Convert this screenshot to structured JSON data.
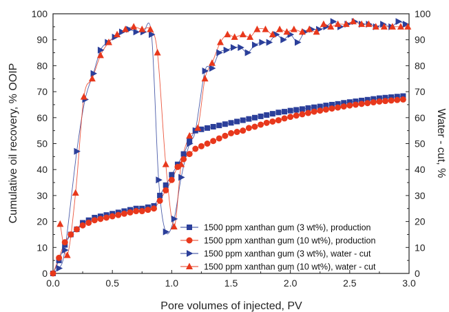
{
  "chart_data": {
    "type": "scatter",
    "xlabel": "Pore volumes of injected, PV",
    "ylabel": "Cumulative oil recovery, % OOIP",
    "y2label": "Water - cut, %",
    "xlim": [
      0,
      3.0
    ],
    "ylim": [
      0,
      100
    ],
    "y2lim": [
      0,
      100
    ],
    "x_ticks": [
      "0.0",
      "0.5",
      "1.0",
      "1.5",
      "2.0",
      "2.5",
      "3.0"
    ],
    "y_ticks": [
      "0",
      "10",
      "20",
      "30",
      "40",
      "50",
      "60",
      "70",
      "80",
      "90",
      "100"
    ],
    "grid": false,
    "legend_position": "lower-right",
    "series": [
      {
        "name": "1500 ppm xanthan gum (3 wt%), production",
        "marker": "square",
        "color": "#2b3f9a",
        "axis": "left",
        "points": [
          [
            0.0,
            0
          ],
          [
            0.05,
            5
          ],
          [
            0.1,
            11
          ],
          [
            0.15,
            15
          ],
          [
            0.2,
            17
          ],
          [
            0.25,
            19.5
          ],
          [
            0.3,
            20.5
          ],
          [
            0.35,
            21.5
          ],
          [
            0.4,
            22
          ],
          [
            0.45,
            22.5
          ],
          [
            0.5,
            23
          ],
          [
            0.55,
            23.5
          ],
          [
            0.6,
            24
          ],
          [
            0.65,
            24.5
          ],
          [
            0.7,
            25
          ],
          [
            0.75,
            25
          ],
          [
            0.8,
            25.5
          ],
          [
            0.85,
            26
          ],
          [
            0.9,
            30
          ],
          [
            0.95,
            34
          ],
          [
            1.0,
            38
          ],
          [
            1.05,
            42
          ],
          [
            1.1,
            46
          ],
          [
            1.15,
            51
          ],
          [
            1.2,
            55
          ],
          [
            1.25,
            55.5
          ],
          [
            1.3,
            56
          ],
          [
            1.35,
            56.5
          ],
          [
            1.4,
            57
          ],
          [
            1.45,
            57.5
          ],
          [
            1.5,
            58
          ],
          [
            1.55,
            58.5
          ],
          [
            1.6,
            59
          ],
          [
            1.65,
            59.5
          ],
          [
            1.7,
            60
          ],
          [
            1.75,
            60.5
          ],
          [
            1.8,
            61
          ],
          [
            1.85,
            61.5
          ],
          [
            1.9,
            62
          ],
          [
            1.95,
            62.3
          ],
          [
            2.0,
            62.7
          ],
          [
            2.05,
            63
          ],
          [
            2.1,
            63.3
          ],
          [
            2.15,
            63.7
          ],
          [
            2.2,
            64
          ],
          [
            2.25,
            64.3
          ],
          [
            2.3,
            64.7
          ],
          [
            2.35,
            65
          ],
          [
            2.4,
            65.3
          ],
          [
            2.45,
            65.7
          ],
          [
            2.5,
            66
          ],
          [
            2.55,
            66.3
          ],
          [
            2.6,
            66.6
          ],
          [
            2.65,
            66.9
          ],
          [
            2.7,
            67.2
          ],
          [
            2.75,
            67.5
          ],
          [
            2.8,
            67.7
          ],
          [
            2.85,
            67.9
          ],
          [
            2.9,
            68.1
          ],
          [
            2.95,
            68.3
          ]
        ]
      },
      {
        "name": "1500 ppm xanthan gum (10 wt%), production",
        "marker": "circle",
        "color": "#e8381c",
        "axis": "left",
        "points": [
          [
            0.0,
            0
          ],
          [
            0.05,
            6
          ],
          [
            0.1,
            12
          ],
          [
            0.15,
            15
          ],
          [
            0.2,
            17
          ],
          [
            0.25,
            18.5
          ],
          [
            0.3,
            19.5
          ],
          [
            0.35,
            20.5
          ],
          [
            0.4,
            21
          ],
          [
            0.45,
            21.5
          ],
          [
            0.5,
            22
          ],
          [
            0.55,
            22.5
          ],
          [
            0.6,
            23
          ],
          [
            0.65,
            23.5
          ],
          [
            0.7,
            24
          ],
          [
            0.75,
            24
          ],
          [
            0.8,
            24.5
          ],
          [
            0.85,
            25
          ],
          [
            0.9,
            28
          ],
          [
            0.95,
            32
          ],
          [
            1.0,
            36
          ],
          [
            1.05,
            41
          ],
          [
            1.1,
            44
          ],
          [
            1.15,
            46
          ],
          [
            1.2,
            48
          ],
          [
            1.25,
            49
          ],
          [
            1.3,
            50
          ],
          [
            1.35,
            51
          ],
          [
            1.4,
            52
          ],
          [
            1.45,
            53
          ],
          [
            1.5,
            54
          ],
          [
            1.55,
            54.5
          ],
          [
            1.6,
            55
          ],
          [
            1.65,
            56
          ],
          [
            1.7,
            56.5
          ],
          [
            1.75,
            57.3
          ],
          [
            1.8,
            58
          ],
          [
            1.85,
            58.5
          ],
          [
            1.9,
            59
          ],
          [
            1.95,
            59.7
          ],
          [
            2.0,
            60.3
          ],
          [
            2.05,
            60.8
          ],
          [
            2.1,
            61.3
          ],
          [
            2.15,
            61.8
          ],
          [
            2.2,
            62.3
          ],
          [
            2.25,
            62.7
          ],
          [
            2.3,
            63.1
          ],
          [
            2.35,
            63.5
          ],
          [
            2.4,
            63.9
          ],
          [
            2.45,
            64.3
          ],
          [
            2.5,
            64.7
          ],
          [
            2.55,
            65
          ],
          [
            2.6,
            65.3
          ],
          [
            2.65,
            65.6
          ],
          [
            2.7,
            65.9
          ],
          [
            2.75,
            66.2
          ],
          [
            2.8,
            66.4
          ],
          [
            2.85,
            66.6
          ],
          [
            2.9,
            66.8
          ],
          [
            2.95,
            67
          ]
        ]
      },
      {
        "name": "1500 ppm xanthan gum (3 wt%), water - cut",
        "marker": "triangle-right",
        "color": "#2b3f9a",
        "axis": "right",
        "points": [
          [
            0.05,
            2
          ],
          [
            0.1,
            9
          ],
          [
            0.2,
            47
          ],
          [
            0.27,
            67
          ],
          [
            0.34,
            77
          ],
          [
            0.4,
            86
          ],
          [
            0.46,
            89
          ],
          [
            0.52,
            91
          ],
          [
            0.58,
            93
          ],
          [
            0.64,
            94
          ],
          [
            0.7,
            93
          ],
          [
            0.76,
            93
          ],
          [
            0.83,
            92
          ],
          [
            0.89,
            36
          ],
          [
            0.95,
            16
          ],
          [
            1.02,
            21
          ],
          [
            1.08,
            37
          ],
          [
            1.15,
            50
          ],
          [
            1.2,
            55
          ],
          [
            1.28,
            78
          ],
          [
            1.34,
            79
          ],
          [
            1.4,
            85
          ],
          [
            1.46,
            86
          ],
          [
            1.52,
            87
          ],
          [
            1.58,
            87
          ],
          [
            1.64,
            85
          ],
          [
            1.7,
            88
          ],
          [
            1.76,
            89
          ],
          [
            1.82,
            89
          ],
          [
            1.88,
            92
          ],
          [
            1.94,
            90
          ],
          [
            2.0,
            92
          ],
          [
            2.06,
            89
          ],
          [
            2.12,
            93
          ],
          [
            2.18,
            94
          ],
          [
            2.24,
            94
          ],
          [
            2.3,
            95
          ],
          [
            2.36,
            97
          ],
          [
            2.42,
            95
          ],
          [
            2.48,
            96
          ],
          [
            2.54,
            97
          ],
          [
            2.6,
            96
          ],
          [
            2.66,
            96
          ],
          [
            2.72,
            95
          ],
          [
            2.78,
            96
          ],
          [
            2.85,
            95
          ],
          [
            2.91,
            97
          ],
          [
            2.97,
            96
          ]
        ]
      },
      {
        "name": "1500 ppm xanthan gum (10 wt%), water - cut",
        "marker": "triangle-up",
        "color": "#e8381c",
        "axis": "right",
        "points": [
          [
            0.06,
            19
          ],
          [
            0.12,
            7
          ],
          [
            0.19,
            31
          ],
          [
            0.26,
            68
          ],
          [
            0.33,
            75
          ],
          [
            0.4,
            84
          ],
          [
            0.47,
            89
          ],
          [
            0.54,
            92
          ],
          [
            0.61,
            94
          ],
          [
            0.68,
            95
          ],
          [
            0.75,
            94
          ],
          [
            0.82,
            94
          ],
          [
            0.88,
            85
          ],
          [
            0.95,
            42
          ],
          [
            1.02,
            18
          ],
          [
            1.08,
            42
          ],
          [
            1.15,
            53
          ],
          [
            1.22,
            56
          ],
          [
            1.28,
            75
          ],
          [
            1.34,
            81
          ],
          [
            1.41,
            89
          ],
          [
            1.47,
            92
          ],
          [
            1.53,
            91
          ],
          [
            1.6,
            92
          ],
          [
            1.66,
            91
          ],
          [
            1.72,
            94
          ],
          [
            1.79,
            94
          ],
          [
            1.85,
            92
          ],
          [
            1.91,
            94
          ],
          [
            1.97,
            93
          ],
          [
            2.03,
            94
          ],
          [
            2.1,
            93
          ],
          [
            2.16,
            94
          ],
          [
            2.22,
            93
          ],
          [
            2.28,
            96
          ],
          [
            2.34,
            95
          ],
          [
            2.4,
            96
          ],
          [
            2.47,
            96
          ],
          [
            2.53,
            97
          ],
          [
            2.6,
            96
          ],
          [
            2.66,
            96
          ],
          [
            2.72,
            95
          ],
          [
            2.79,
            95
          ],
          [
            2.86,
            95
          ],
          [
            2.93,
            95
          ],
          [
            2.99,
            95
          ]
        ]
      }
    ]
  }
}
